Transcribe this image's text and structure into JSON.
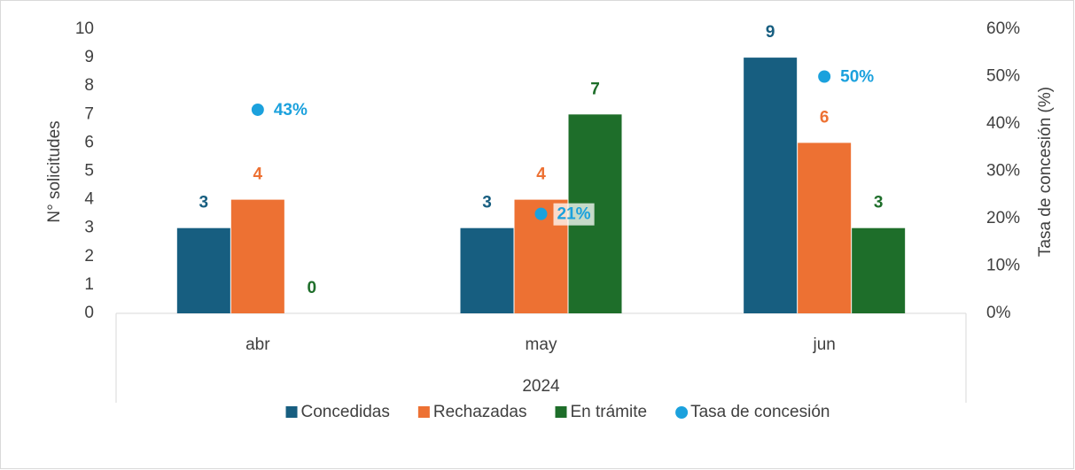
{
  "chart_data": {
    "type": "bar",
    "categories": [
      "abr",
      "may",
      "jun"
    ],
    "group_label": "2024",
    "y_label": "N° solicitudes",
    "y2_label": "Tasa de concesión (%)",
    "ylim": [
      0,
      10
    ],
    "yticks": [
      0,
      1,
      2,
      3,
      4,
      5,
      6,
      7,
      8,
      9,
      10
    ],
    "y2lim": [
      0,
      60
    ],
    "y2ticks": [
      {
        "value": 0,
        "label": "0%"
      },
      {
        "value": 10,
        "label": "10%"
      },
      {
        "value": 20,
        "label": "20%"
      },
      {
        "value": 30,
        "label": "30%"
      },
      {
        "value": 40,
        "label": "40%"
      },
      {
        "value": 50,
        "label": "50%"
      },
      {
        "value": 60,
        "label": "60%"
      }
    ],
    "grid": false,
    "legend": "bottom",
    "series": [
      {
        "name": "Concedidas",
        "color": "#175e80",
        "values": [
          3,
          3,
          9
        ]
      },
      {
        "name": "Rechazadas",
        "color": "#ed7133",
        "values": [
          4,
          4,
          6
        ]
      },
      {
        "name": "En trámite",
        "color": "#1e6e2a",
        "values": [
          0,
          7,
          3
        ]
      },
      {
        "name": "Tasa de concesión",
        "color": "#1ba1dd",
        "type": "scatter",
        "axis": "y2",
        "values": [
          43,
          21,
          50
        ],
        "value_labels": [
          "43%",
          "21%",
          "50%"
        ]
      }
    ]
  }
}
